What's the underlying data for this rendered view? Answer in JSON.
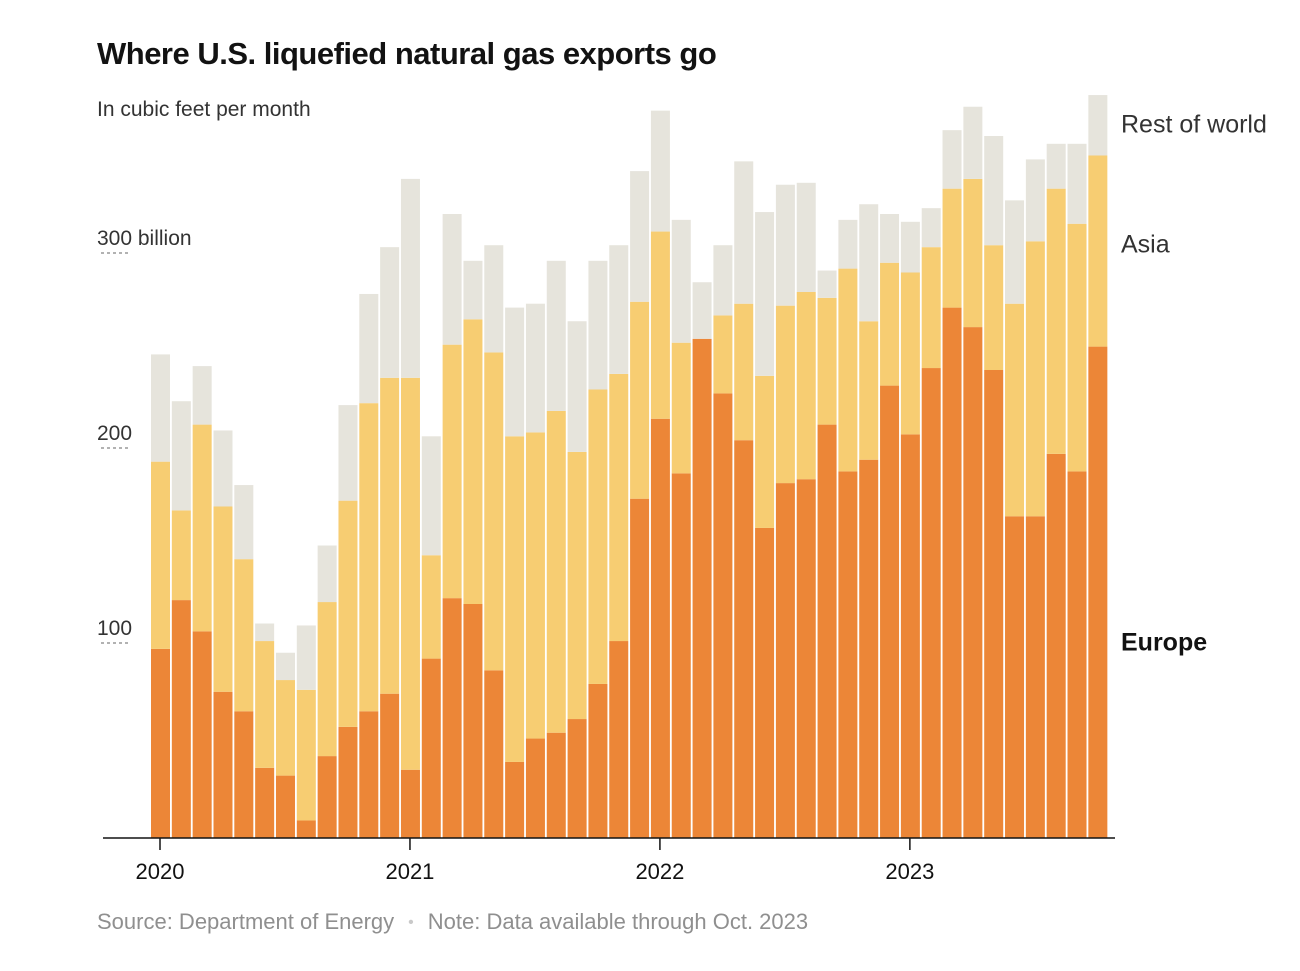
{
  "title": "Where U.S. liquefied natural gas exports go",
  "subtitle": "In cubic feet per month",
  "footer": {
    "source": "Source: Department of Energy",
    "separator": "•",
    "note": "Note: Data available through Oct. 2023"
  },
  "colors": {
    "europe": "#ec8637",
    "asia": "#f7cd72",
    "rest": "#e6e4dc",
    "axis": "#121212",
    "tick_text": "#333333"
  },
  "chart_data": {
    "type": "bar",
    "stacked": true,
    "title": "Where U.S. liquefied natural gas exports go",
    "subtitle": "In cubic feet per month",
    "ylim": [
      0,
      380
    ],
    "yticks": [
      {
        "value": 100,
        "label": "100"
      },
      {
        "value": 200,
        "label": "200"
      },
      {
        "value": 300,
        "label": "300 billion"
      }
    ],
    "xticks": [
      "2020",
      "2021",
      "2022",
      "2023"
    ],
    "grid": false,
    "categories": [
      "2020-01",
      "2020-02",
      "2020-03",
      "2020-04",
      "2020-05",
      "2020-06",
      "2020-07",
      "2020-08",
      "2020-09",
      "2020-10",
      "2020-11",
      "2020-12",
      "2021-01",
      "2021-02",
      "2021-03",
      "2021-04",
      "2021-05",
      "2021-06",
      "2021-07",
      "2021-08",
      "2021-09",
      "2021-10",
      "2021-11",
      "2021-12",
      "2022-01",
      "2022-02",
      "2022-03",
      "2022-04",
      "2022-05",
      "2022-06",
      "2022-07",
      "2022-08",
      "2022-09",
      "2022-10",
      "2022-11",
      "2022-12",
      "2023-01",
      "2023-02",
      "2023-03",
      "2023-04",
      "2023-05",
      "2023-06",
      "2023-07",
      "2023-08",
      "2023-09",
      "2023-10"
    ],
    "series": [
      {
        "name": "Europe",
        "values": [
          97,
          122,
          106,
          75,
          65,
          36,
          32,
          9,
          42,
          57,
          65,
          74,
          35,
          92,
          123,
          120,
          86,
          39,
          51,
          54,
          61,
          79,
          101,
          174,
          215,
          187,
          256,
          228,
          204,
          159,
          182,
          184,
          212,
          188,
          194,
          232,
          207,
          241,
          272,
          262,
          240,
          165,
          165,
          197,
          188,
          252
        ]
      },
      {
        "name": "Asia",
        "values": [
          96,
          46,
          106,
          95,
          78,
          65,
          49,
          67,
          79,
          116,
          158,
          162,
          201,
          53,
          130,
          146,
          163,
          167,
          157,
          165,
          137,
          151,
          137,
          101,
          96,
          67,
          0,
          40,
          70,
          78,
          91,
          96,
          65,
          104,
          71,
          63,
          83,
          62,
          61,
          76,
          64,
          109,
          141,
          136,
          127,
          98
        ]
      },
      {
        "name": "Rest of world",
        "values": [
          55,
          56,
          30,
          39,
          38,
          9,
          14,
          33,
          29,
          49,
          56,
          67,
          102,
          61,
          67,
          30,
          55,
          66,
          66,
          77,
          67,
          66,
          66,
          67,
          62,
          63,
          29,
          36,
          73,
          84,
          62,
          56,
          14,
          25,
          60,
          25,
          26,
          20,
          30,
          37,
          56,
          53,
          42,
          23,
          41,
          31
        ]
      }
    ]
  }
}
